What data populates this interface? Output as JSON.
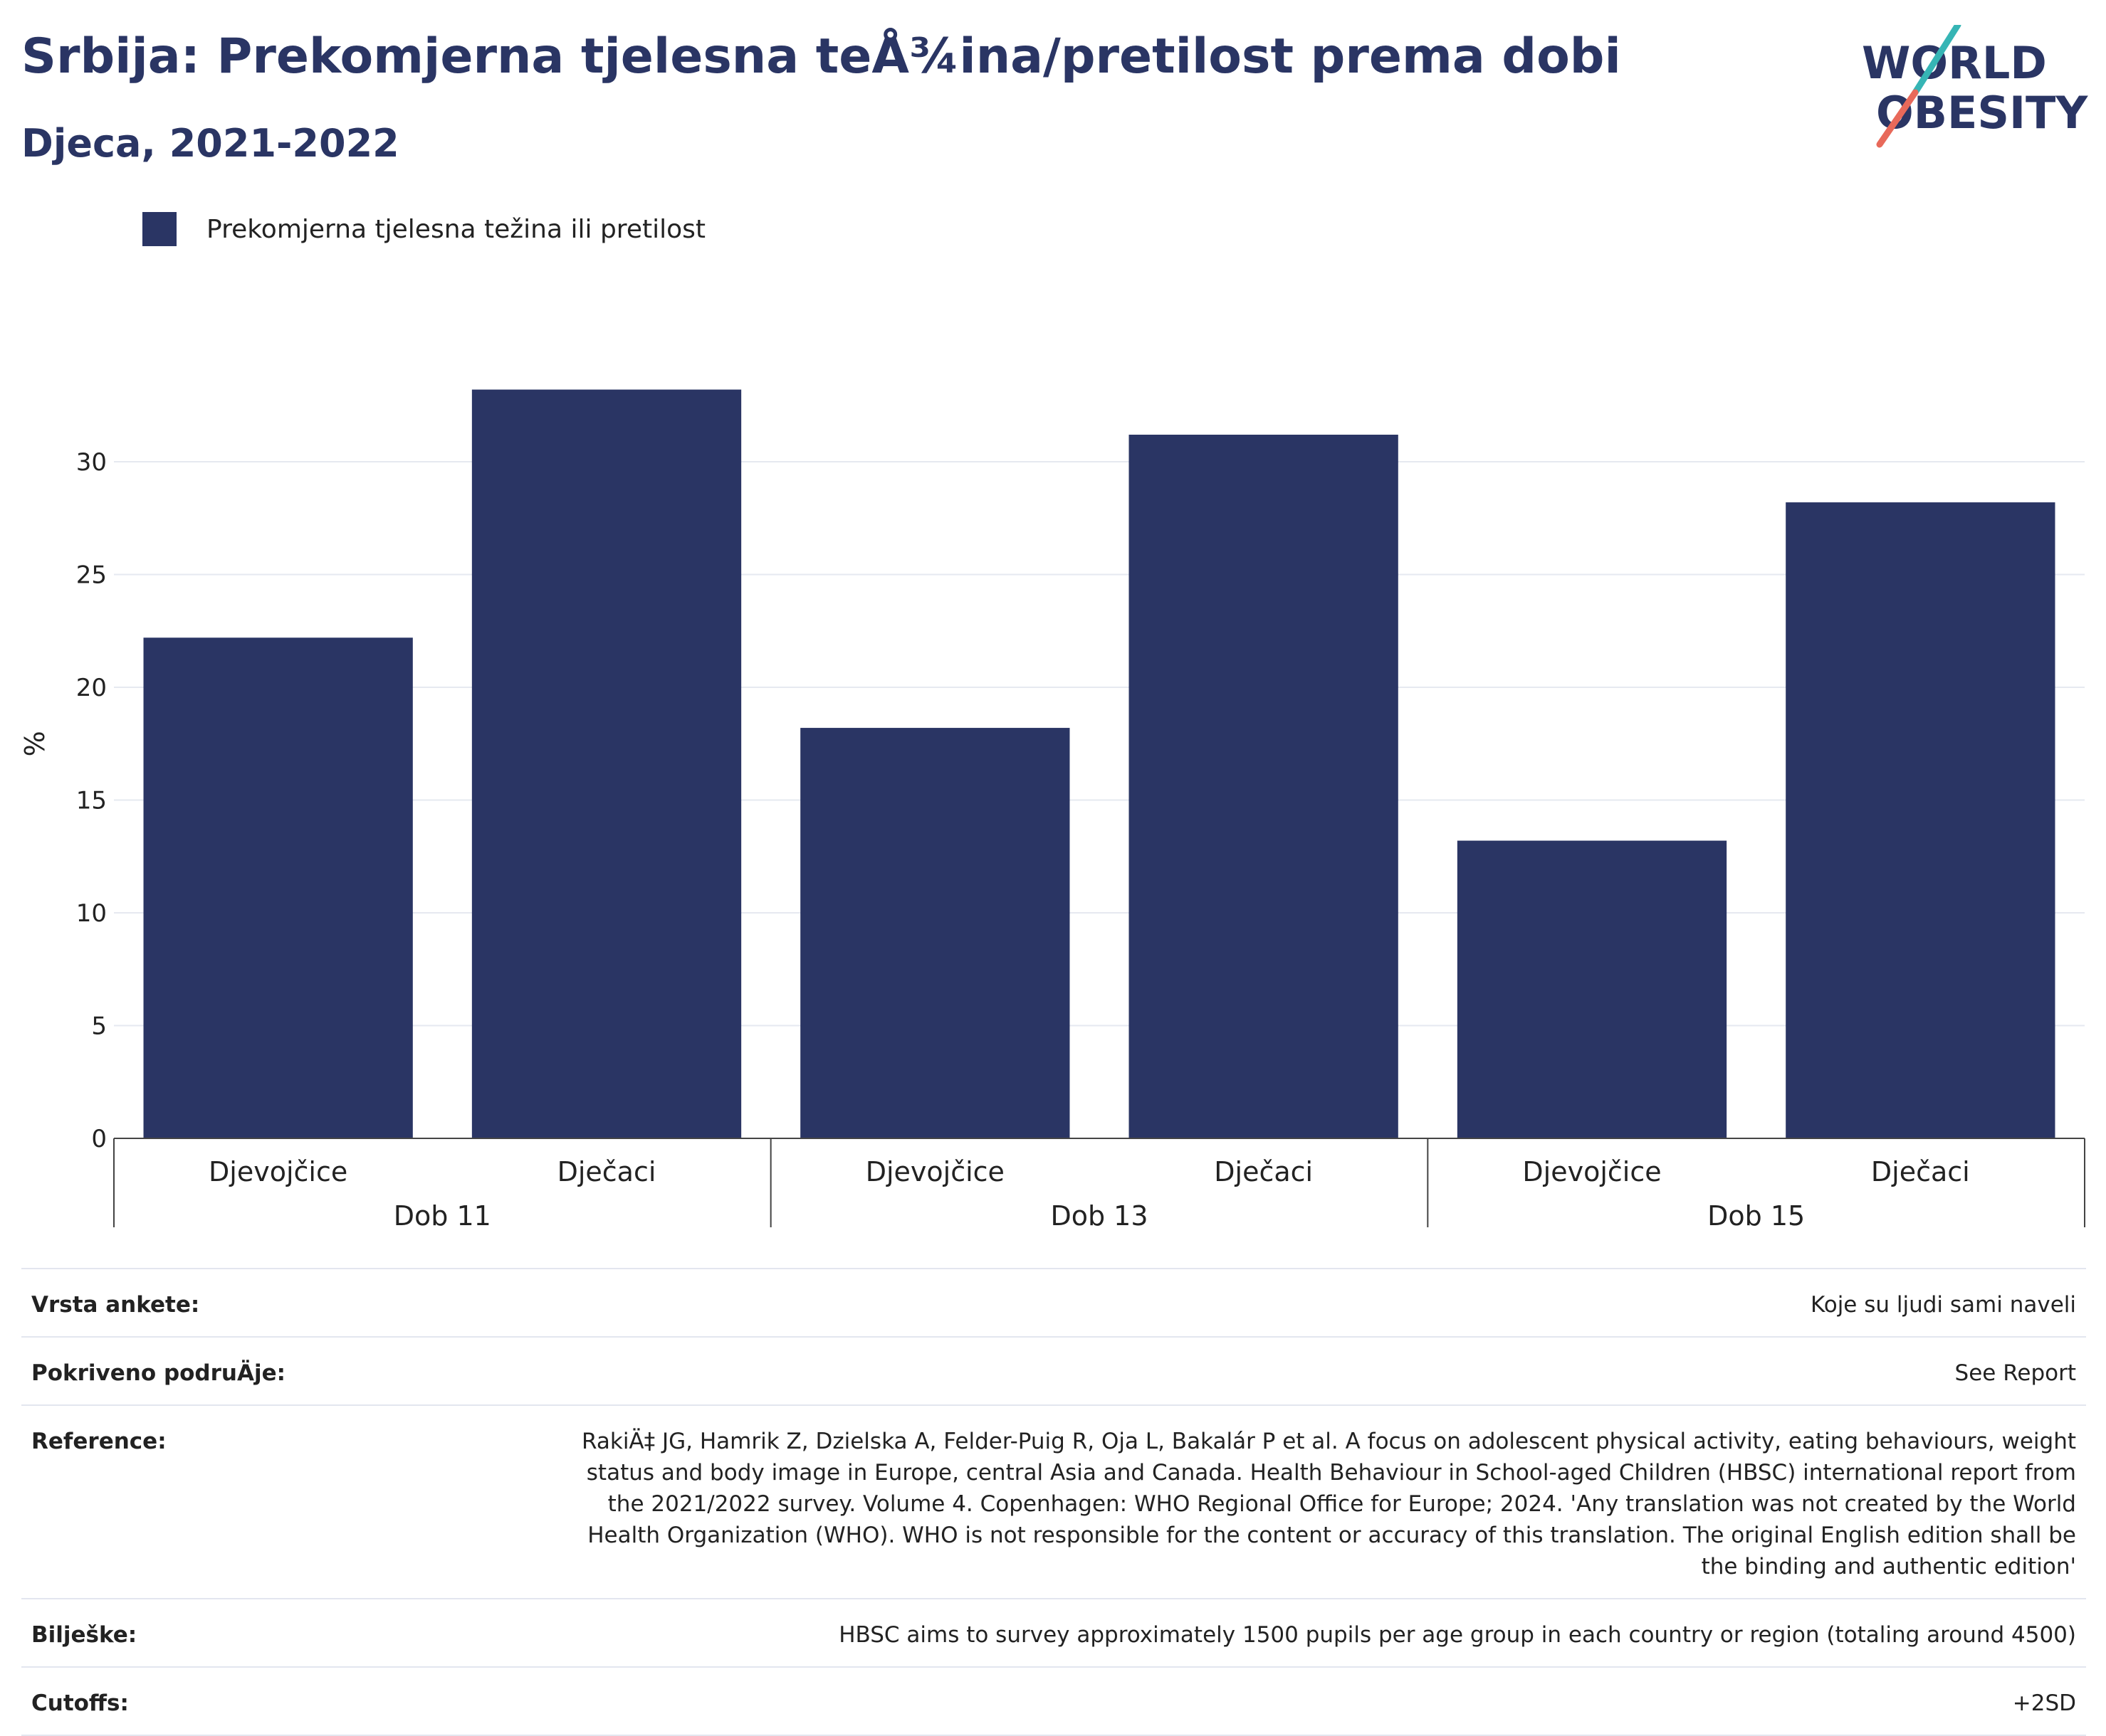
{
  "header": {
    "title": "Srbija: Prekomjerna tjelesna teÅ¾ina/pretilost prema dobi",
    "subtitle": "Djeca, 2021-2022",
    "logo_text_line1": "WORLD",
    "logo_text_line2": "OBESITY"
  },
  "colors": {
    "bar": "#2a3564",
    "title": "#2a3564",
    "logo_navy": "#2a3564",
    "logo_teal": "#36b5b5",
    "logo_coral": "#e8695a",
    "grid": "#e6e9f0"
  },
  "chart_data": {
    "type": "bar",
    "ylabel": "%",
    "ylim": [
      0,
      33.5
    ],
    "yticks": [
      0,
      5,
      10,
      15,
      20,
      25,
      30
    ],
    "grid": true,
    "legend_position": "top-left",
    "groups": [
      {
        "label": "Dob 11",
        "categories": [
          "Djevojčice",
          "Dječaci"
        ]
      },
      {
        "label": "Dob 13",
        "categories": [
          "Djevojčice",
          "Dječaci"
        ]
      },
      {
        "label": "Dob 15",
        "categories": [
          "Djevojčice",
          "Dječaci"
        ]
      }
    ],
    "series": [
      {
        "name": "Prekomjerna tjelesna težina ili pretilost",
        "values": [
          22.2,
          33.2,
          18.2,
          31.2,
          13.2,
          28.2
        ]
      }
    ]
  },
  "metadata": [
    {
      "label": "Vrsta ankete:",
      "value": "Koje su ljudi sami naveli"
    },
    {
      "label": "Pokriveno podruÄje:",
      "value": "See Report"
    },
    {
      "label": "Reference:",
      "value": "RakiÄ‡ JG, Hamrik Z, Dzielska A, Felder-Puig R, Oja L, Bakalár P et al. A focus on adolescent physical activity, eating behaviours, weight status and body image in Europe, central Asia and Canada. Health Behaviour in School-aged Children (HBSC) international report from the 2021/2022 survey. Volume 4. Copenhagen: WHO Regional Office for Europe; 2024. 'Any translation was not created by the World Health Organization (WHO). WHO is not responsible for the content or accuracy of this translation. The original English edition shall be the binding and authentic edition'"
    },
    {
      "label": "Bilješke:",
      "value": "HBSC aims to survey approximately 1500 pupils per age group in each country or region (totaling around 4500)"
    },
    {
      "label": "Cutoffs:",
      "value": "+2SD"
    }
  ]
}
